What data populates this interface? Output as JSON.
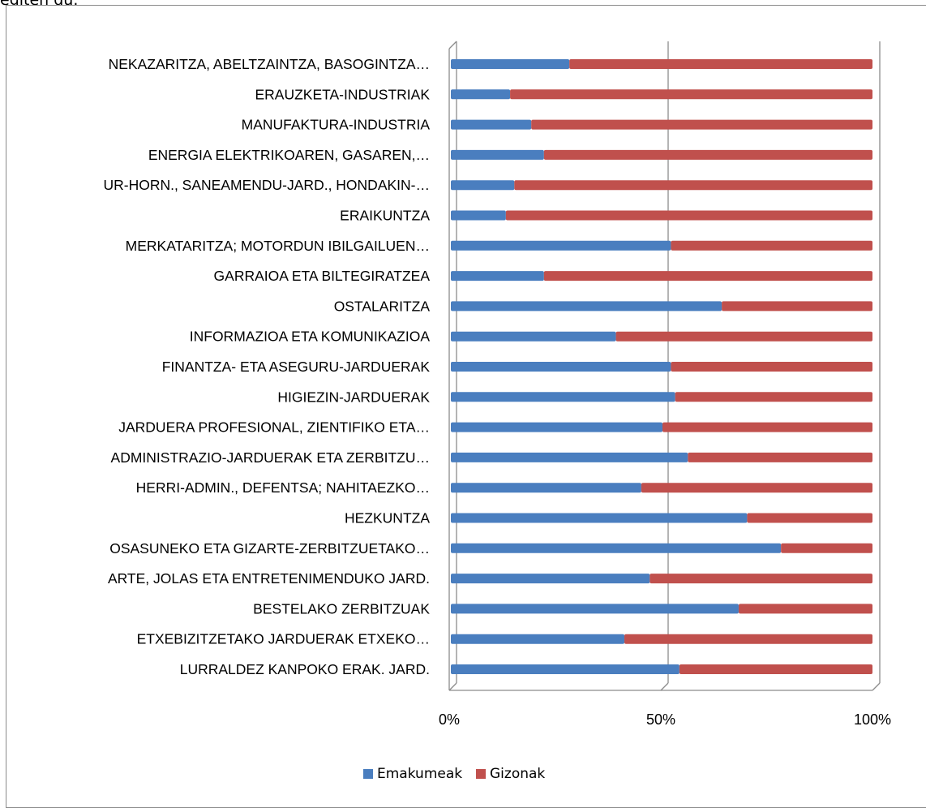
{
  "caption": "egiten du.",
  "colors": {
    "women": "#4a7ebf",
    "men": "#c0504d",
    "grid": "#8c8c8c"
  },
  "chart_data": {
    "type": "bar",
    "orientation": "horizontal",
    "stacked": "percent",
    "categories": [
      "NEKAZARITZA, ABELTZAINTZA, BASOGINTZA…",
      "ERAUZKETA-INDUSTRIAK",
      "MANUFAKTURA-INDUSTRIA",
      "ENERGIA ELEKTRIKOAREN, GASAREN,…",
      "UR-HORN., SANEAMENDU-JARD., HONDAKIN-…",
      "ERAIKUNTZA",
      "MERKATARITZA; MOTORDUN IBILGAILUEN…",
      "GARRAIOA ETA BILTEGIRATZEA",
      "OSTALARITZA",
      "INFORMAZIOA ETA KOMUNIKAZIOA",
      "FINANTZA- ETA ASEGURU-JARDUERAK",
      "HIGIEZIN-JARDUERAK",
      "JARDUERA PROFESIONAL, ZIENTIFIKO ETA…",
      "ADMINISTRAZIO-JARDUERAK ETA ZERBITZU…",
      "HERRI-ADMIN., DEFENTSA; NAHITAEZKO…",
      "HEZKUNTZA",
      "OSASUNEKO ETA GIZARTE-ZERBITZUETAKO…",
      "ARTE, JOLAS ETA ENTRETENIMENDUKO JARD.",
      "BESTELAKO ZERBITZUAK",
      "ETXEBIZITZETAKO JARDUERAK ETXEKO…",
      "LURRALDEZ KANPOKO ERAK. JARD."
    ],
    "series": [
      {
        "name": "Emakumeak",
        "values": [
          28,
          14,
          19,
          22,
          15,
          13,
          52,
          22,
          64,
          39,
          52,
          53,
          50,
          56,
          45,
          70,
          78,
          47,
          68,
          41,
          54
        ]
      },
      {
        "name": "Gizonak",
        "values": [
          72,
          86,
          81,
          78,
          85,
          87,
          48,
          78,
          36,
          61,
          48,
          47,
          50,
          44,
          55,
          30,
          22,
          53,
          32,
          59,
          46
        ]
      }
    ],
    "xlim": [
      0,
      100
    ],
    "xticks": [
      "0%",
      "50%",
      "100%"
    ],
    "grid": true,
    "legend": "bottom"
  }
}
